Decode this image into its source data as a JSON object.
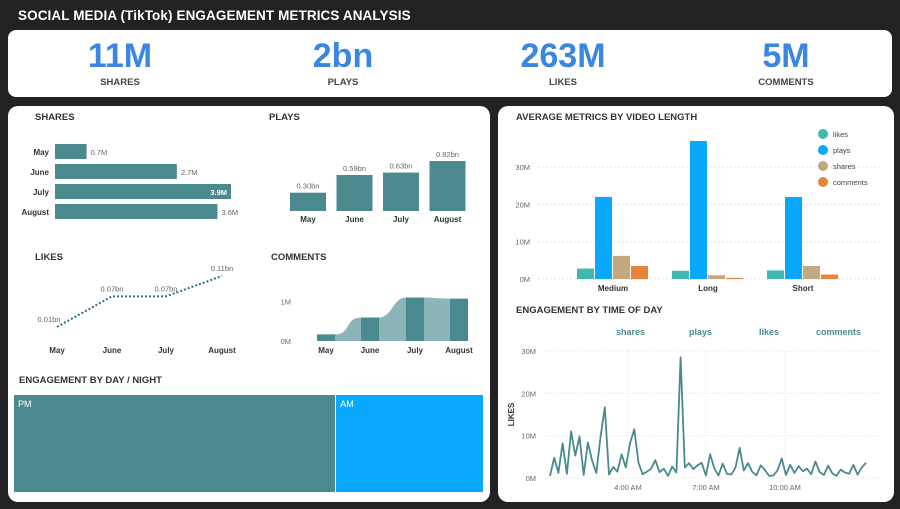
{
  "header": {
    "title": "SOCIAL MEDIA (TikTok) ENGAGEMENT METRICS ANALYSIS"
  },
  "kpis": [
    {
      "value": "11M",
      "label": "SHARES"
    },
    {
      "value": "2bn",
      "label": "PLAYS"
    },
    {
      "value": "263M",
      "label": "LIKES"
    },
    {
      "value": "5M",
      "label": "COMMENTS"
    }
  ],
  "colors": {
    "teal": "#4a8a8f",
    "blue": "#0aa7ff",
    "likes": "#3fb8b0",
    "shares": "#c3a77f",
    "comments": "#e8833e",
    "kpi": "#3a86e0"
  },
  "chart_data": [
    {
      "type": "bar",
      "title": "SHARES",
      "orientation": "horizontal",
      "categories": [
        "May",
        "June",
        "July",
        "August"
      ],
      "values": [
        0.7,
        2.7,
        3.9,
        3.6
      ],
      "labels": [
        "0.7M",
        "2.7M",
        "3.9M",
        "3.6M"
      ]
    },
    {
      "type": "bar",
      "title": "PLAYS",
      "categories": [
        "May",
        "June",
        "July",
        "August"
      ],
      "values": [
        0.3,
        0.59,
        0.63,
        0.82
      ],
      "labels": [
        "0.30bn",
        "0.59bn",
        "0.63bn",
        "0.82bn"
      ]
    },
    {
      "type": "line",
      "title": "LIKES",
      "categories": [
        "May",
        "June",
        "July",
        "August"
      ],
      "values": [
        0.01,
        0.07,
        0.07,
        0.11
      ],
      "labels": [
        "0.01bn",
        "0.07bn",
        "0.07bn",
        "0.11bn"
      ]
    },
    {
      "type": "area",
      "title": "COMMENTS",
      "categories": [
        "May",
        "June",
        "July",
        "August"
      ],
      "values": [
        0.28,
        1.0,
        1.85,
        1.8
      ],
      "yticks": [
        "0M",
        "1M"
      ]
    },
    {
      "type": "bar",
      "title": "AVERAGE METRICS BY VIDEO LENGTH",
      "categories": [
        "Medium",
        "Long",
        "Short"
      ],
      "series": [
        {
          "name": "likes",
          "values": [
            2.8,
            2.2,
            2.3
          ]
        },
        {
          "name": "plays",
          "values": [
            22,
            37,
            22
          ]
        },
        {
          "name": "shares",
          "values": [
            6.2,
            1.0,
            3.5
          ]
        },
        {
          "name": "comments",
          "values": [
            3.5,
            0.3,
            1.2
          ]
        }
      ],
      "yticks": [
        "0M",
        "10M",
        "20M",
        "30M"
      ],
      "ylim": [
        0,
        37
      ]
    },
    {
      "type": "line",
      "title": "ENGAGEMENT BY TIME OF DAY",
      "ylabel": "LIKES",
      "legend": [
        "shares",
        "plays",
        "likes",
        "comments"
      ],
      "yticks": [
        "0M",
        "10M",
        "20M",
        "30M"
      ],
      "xticks": [
        "4:00 AM",
        "7:00 AM",
        "10:00 AM"
      ],
      "ylim": [
        0,
        30
      ],
      "values": [
        0.5,
        4.8,
        1.2,
        8.2,
        1.0,
        11,
        5.3,
        9.8,
        0.7,
        8.4,
        4.1,
        1.2,
        9.8,
        16.7,
        0.8,
        2.6,
        1.5,
        5.6,
        2.5,
        8.3,
        11.5,
        3.6,
        0.9,
        1.5,
        2.2,
        4.2,
        1.4,
        2.2,
        0.5,
        2.7,
        1.3,
        28.5,
        2.5,
        3.5,
        2.1,
        3.0,
        3.6,
        0.6,
        5.6,
        2.3,
        0.6,
        3.4,
        1.0,
        0.8,
        2.4,
        7.1,
        1.8,
        3.5,
        1.5,
        0.6,
        3.0,
        1.9,
        0.5,
        0.6,
        1.8,
        4.6,
        0.7,
        3.1,
        1.2,
        2.8,
        1.6,
        2.2,
        0.9,
        3.9,
        1.4,
        0.7,
        2.9,
        1.1,
        0.5,
        2.0,
        1.3,
        1.0,
        3.1,
        0.8,
        2.5,
        3.6
      ]
    },
    {
      "type": "treemap",
      "title": "ENGAGEMENT BY DAY / NIGHT",
      "categories": [
        "PM",
        "AM"
      ],
      "values": [
        68.7,
        31.3
      ]
    }
  ]
}
